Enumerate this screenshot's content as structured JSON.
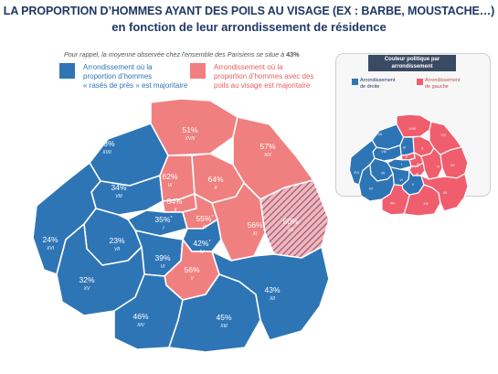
{
  "title": {
    "line1": "LA PROPORTION D’HOMMES AYANT DES POILS AU VISAGE (EX : BARBE, MOUSTACHE…)",
    "line2": "en fonction de leur arrondissement de résidence"
  },
  "note": {
    "text": "Pour rappel, la moyenne observée chez l'ensemble des Parisiens se situe à ",
    "value": "43%"
  },
  "legend": {
    "shaved": {
      "text": [
        "Arrondissement où la",
        "proportion d’hommes",
        "« rasés de près » est majoritaire"
      ],
      "color": "#2e75b6"
    },
    "hairy": {
      "text": [
        "Arrondissement où la",
        "proportion d’hommes avec des",
        "poils au visage est majoritaire"
      ],
      "color": "#f08080"
    }
  },
  "colors": {
    "shaved": "#2e75b6",
    "hairy": "#f08080",
    "hatch_a": "#8b5a8c",
    "hatch_b": "#f5b7b5",
    "border": "#ffffff",
    "title": "#1f3864",
    "inset_right": "#2e75b6",
    "inset_left": "#f05e6e"
  },
  "districts": [
    {
      "id": "XVII",
      "value": "38%",
      "category": "shaved"
    },
    {
      "id": "XVIII",
      "value": "51%",
      "category": "hairy"
    },
    {
      "id": "XIX",
      "value": "57%",
      "category": "hairy"
    },
    {
      "id": "VIII",
      "value": "34%",
      "category": "shaved"
    },
    {
      "id": "IX",
      "value": "62%",
      "category": "hairy"
    },
    {
      "id": "X",
      "value": "64%",
      "category": "hairy"
    },
    {
      "id": "II",
      "value": "64%",
      "category": "hairy",
      "note": "*"
    },
    {
      "id": "I",
      "value": "35%",
      "category": "shaved",
      "note": "*"
    },
    {
      "id": "III",
      "value": "55%",
      "category": "hairy",
      "note": "*"
    },
    {
      "id": "IV",
      "value": "42%",
      "category": "shaved",
      "note": "*"
    },
    {
      "id": "XI",
      "value": "56%",
      "category": "hairy"
    },
    {
      "id": "XX",
      "value": "50%",
      "category": "tie"
    },
    {
      "id": "XVI",
      "value": "24%",
      "category": "shaved"
    },
    {
      "id": "VII",
      "value": "23%",
      "category": "shaved"
    },
    {
      "id": "VI",
      "value": "39%",
      "category": "shaved"
    },
    {
      "id": "V",
      "value": "56%",
      "category": "hairy"
    },
    {
      "id": "XV",
      "value": "32%",
      "category": "shaved"
    },
    {
      "id": "XIV",
      "value": "46%",
      "category": "shaved"
    },
    {
      "id": "XIII",
      "value": "45%",
      "category": "shaved"
    },
    {
      "id": "XII",
      "value": "43%",
      "category": "shaved"
    }
  ],
  "inset": {
    "title": [
      "Couleur politique par",
      "arrondissement"
    ],
    "legend_right": [
      "Arrondissement",
      "de droite"
    ],
    "legend_left": [
      "Arrondissement",
      "de gauche"
    ],
    "district_labels": [
      {
        "id": "XVII",
        "party": "right"
      },
      {
        "id": "XVIII",
        "party": "left"
      },
      {
        "id": "XIX",
        "party": "left"
      },
      {
        "id": "VIII",
        "party": "right"
      },
      {
        "id": "IX",
        "party": "right"
      },
      {
        "id": "X",
        "party": "left"
      },
      {
        "id": "II",
        "party": "left"
      },
      {
        "id": "I",
        "party": "right"
      },
      {
        "id": "III",
        "party": "left"
      },
      {
        "id": "IV",
        "party": "left"
      },
      {
        "id": "XI",
        "party": "left"
      },
      {
        "id": "XX",
        "party": "left"
      },
      {
        "id": "XVI",
        "party": "right"
      },
      {
        "id": "VII",
        "party": "right"
      },
      {
        "id": "VI",
        "party": "right"
      },
      {
        "id": "V",
        "party": "right"
      },
      {
        "id": "XV",
        "party": "right"
      },
      {
        "id": "XIV",
        "party": "left"
      },
      {
        "id": "XIII",
        "party": "left"
      },
      {
        "id": "XII",
        "party": "left"
      }
    ]
  }
}
